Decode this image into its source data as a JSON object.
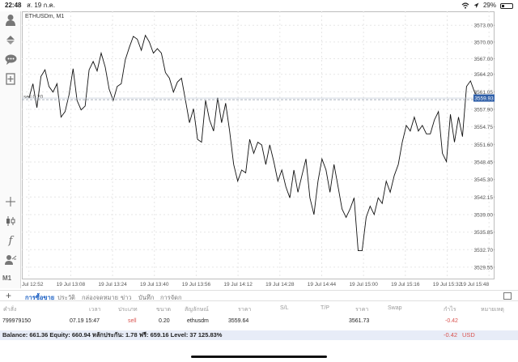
{
  "status_bar": {
    "time": "22:48",
    "date": "ส. 19 ก.ค.",
    "battery": "29%",
    "battery_level": 0.29
  },
  "chart": {
    "symbol_title": "ETHUSDm, M1",
    "position_label": "sell 0.20",
    "current_price": "3559.93"
  },
  "sidebar": {
    "label": "M1"
  },
  "chart_data": {
    "type": "line",
    "ylim": [
      3527.5,
      3575.5
    ],
    "y_ticks": [
      "3573.00",
      "3570.00",
      "3567.00",
      "3564.20",
      "3561.05",
      "3557.90",
      "3554.75",
      "3551.60",
      "3548.45",
      "3545.30",
      "3542.15",
      "3539.00",
      "3535.85",
      "3532.70",
      "3529.55"
    ],
    "y_tick_values": [
      3573.0,
      3570.0,
      3567.0,
      3564.2,
      3561.05,
      3557.9,
      3554.75,
      3551.6,
      3548.45,
      3545.3,
      3542.15,
      3539.0,
      3535.85,
      3532.7,
      3529.55
    ],
    "x_ticks": [
      "19 Jul 12:52",
      "19 Jul 13:08",
      "19 Jul 13:24",
      "19 Jul 13:40",
      "19 Jul 13:56",
      "19 Jul 14:12",
      "19 Jul 14:28",
      "19 Jul 14:44",
      "19 Jul 15:00",
      "19 Jul 15:16",
      "19 Jul 15:32",
      "19 Jul 15:48"
    ],
    "x_range_minutes": [
      -2.7,
      177.8
    ],
    "order_level": 3559.64,
    "bid_level": 3559.93,
    "series": [
      {
        "values": [
          3559.9,
          3562.5,
          3558.2,
          3563.8,
          3565.0,
          3562.0,
          3561.0,
          3562.5,
          3556.5,
          3557.5,
          3560.5,
          3565.2,
          3559.5,
          3557.8,
          3558.5,
          3565.0,
          3566.5,
          3564.8,
          3568.0,
          3565.5,
          3561.5,
          3559.5,
          3562.0,
          3562.5,
          3566.8,
          3569.0,
          3571.0,
          3570.5,
          3568.5,
          3571.2,
          3570.0,
          3568.0,
          3568.8,
          3568.0,
          3564.5,
          3563.5,
          3561.0,
          3562.8,
          3563.5,
          3559.5,
          3555.5,
          3558.0,
          3552.5,
          3552.0,
          3559.5,
          3556.0,
          3554.0,
          3560.0,
          3555.5,
          3559.0,
          3554.0,
          3548.0,
          3545.0,
          3547.0,
          3546.5,
          3552.5,
          3550.0,
          3552.0,
          3551.5,
          3548.0,
          3551.5,
          3548.5,
          3545.0,
          3547.0,
          3544.0,
          3542.0,
          3547.0,
          3543.0,
          3546.0,
          3549.0,
          3542.0,
          3539.0,
          3545.0,
          3549.0,
          3547.0,
          3543.0,
          3548.0,
          3544.0,
          3540.0,
          3538.5,
          3540.0,
          3542.0,
          3532.5,
          3532.5,
          3538.5,
          3540.5,
          3539.0,
          3542.0,
          3541.0,
          3545.0,
          3543.0,
          3546.0,
          3548.0,
          3552.0,
          3555.0,
          3554.0,
          3556.5,
          3554.0,
          3555.0,
          3553.5,
          3553.5,
          3556.0,
          3557.5,
          3550.0,
          3548.5,
          3557.0,
          3552.0,
          3556.5,
          3553.0,
          3562.0,
          3563.0,
          3561.0,
          3559.9
        ]
      }
    ]
  },
  "tabs": [
    "การซื้อขาย",
    "ประวัติ",
    "กล่องจดหมาย",
    "ข่าว",
    "บันทึก",
    "การจัดก"
  ],
  "columns": [
    "คำสั่ง",
    "เวลา",
    "ประเภท",
    "ขนาด",
    "สัญลักษณ์",
    "ราคา",
    "S/L",
    "T/P",
    "ราคา",
    "Swap",
    "กำไร",
    "หมายเหตุ"
  ],
  "order": {
    "id": "799979150",
    "time": "07.19 15:47",
    "type": "sell",
    "size": "0.20",
    "symbol": "ethusdm",
    "open_price": "3559.64",
    "current_price": "3561.73",
    "profit": "-0.42"
  },
  "balance": {
    "text": "Balance: 661.36 Equity: 660.94 หลักประกัน: 1.78 ฟรี: 659.16 Level: 37 125.83%",
    "profit": "-0.42",
    "currency": "USD"
  },
  "colors": {
    "accent": "#1f62c4",
    "loss": "#d9534f",
    "price_tag": "#2f5fa8"
  }
}
